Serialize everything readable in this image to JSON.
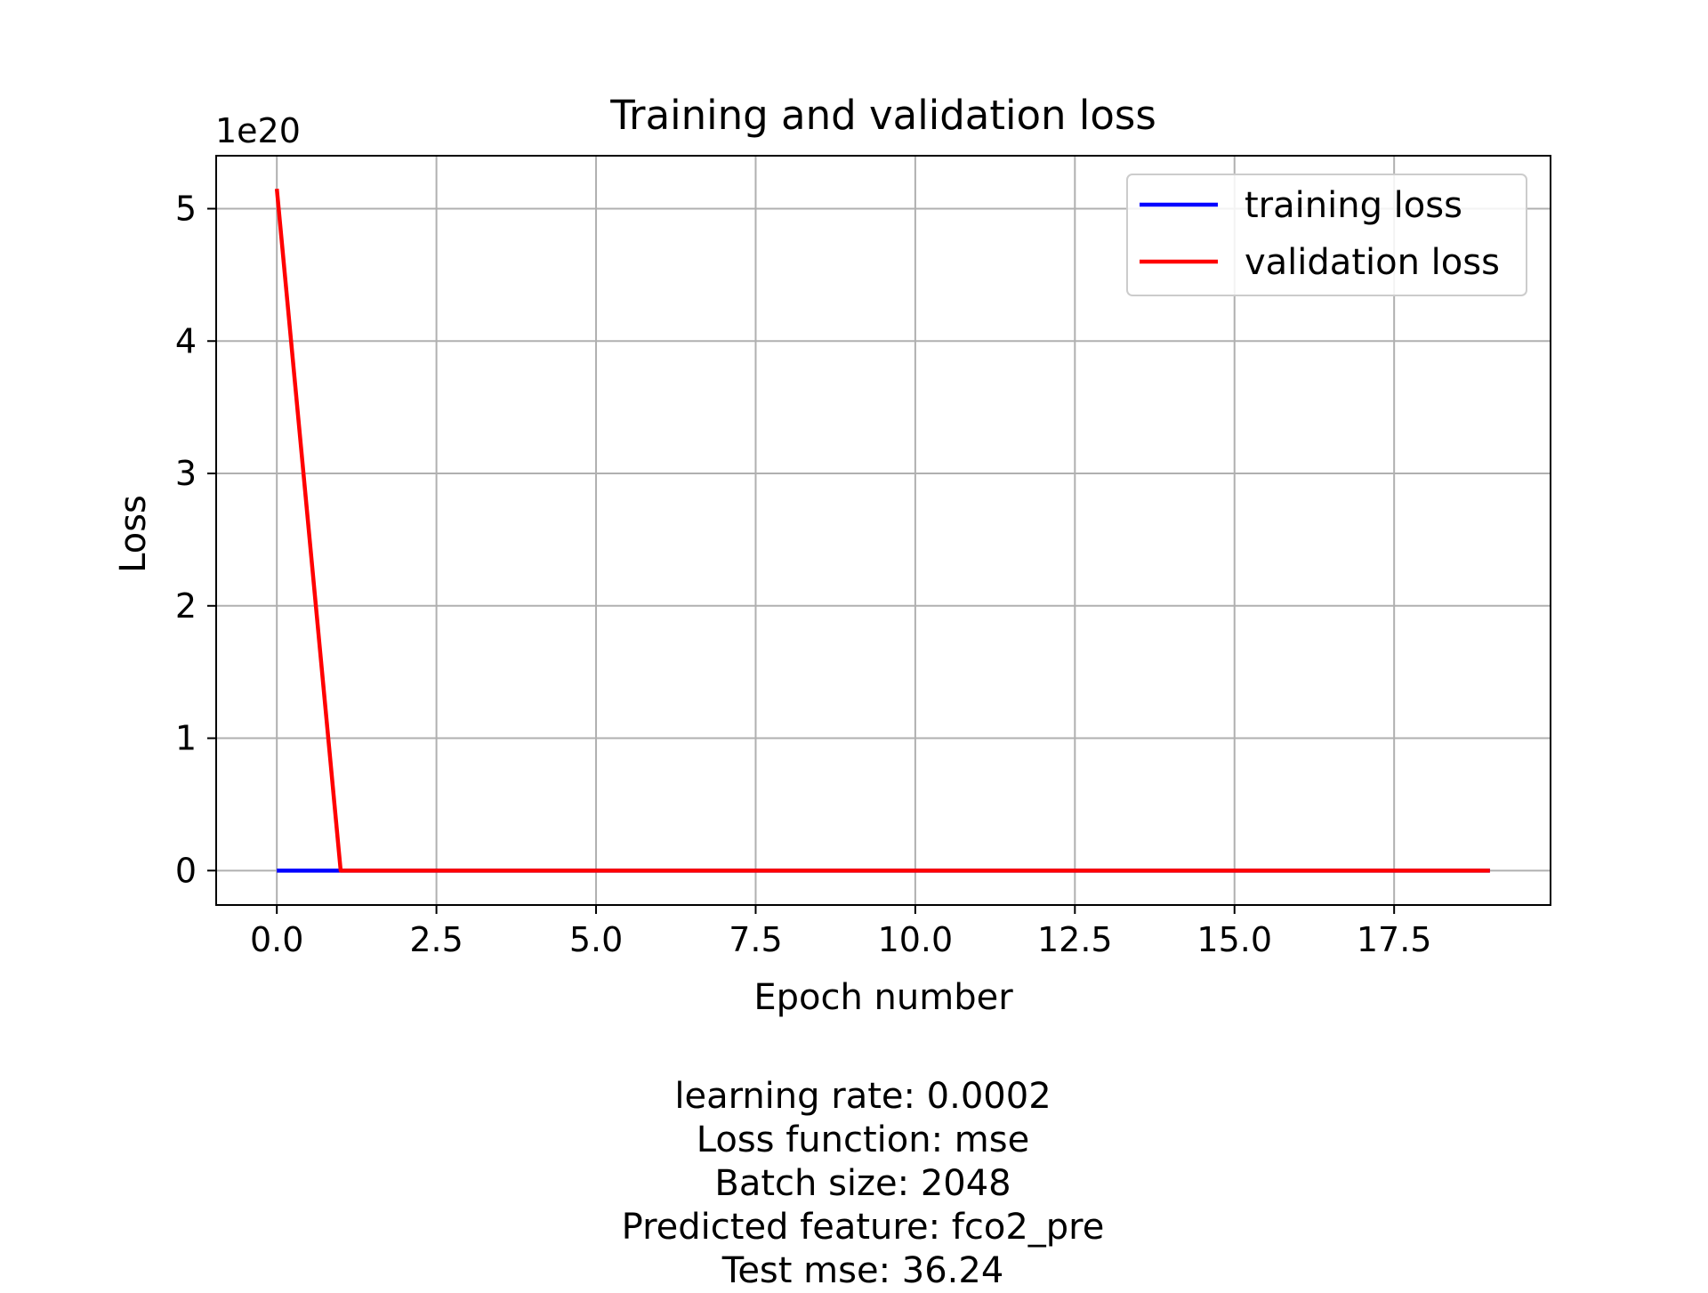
{
  "chart_data": {
    "type": "line",
    "title": "Training and validation loss",
    "xlabel": "Epoch number",
    "ylabel": "Loss",
    "y_offset_label": "1e20",
    "y_scale_exponent": 20,
    "xlim": [
      -0.95,
      19.95
    ],
    "ylim": [
      -0.26,
      5.4
    ],
    "xticks": [
      0.0,
      2.5,
      5.0,
      7.5,
      10.0,
      12.5,
      15.0,
      17.5
    ],
    "xtick_labels": [
      "0.0",
      "2.5",
      "5.0",
      "7.5",
      "10.0",
      "12.5",
      "15.0",
      "17.5"
    ],
    "yticks": [
      0,
      1,
      2,
      3,
      4,
      5
    ],
    "ytick_labels": [
      "0",
      "1",
      "2",
      "3",
      "4",
      "5"
    ],
    "grid": true,
    "legend_position": "top-right",
    "x": [
      0,
      1,
      2,
      3,
      4,
      5,
      6,
      7,
      8,
      9,
      10,
      11,
      12,
      13,
      14,
      15,
      16,
      17,
      18,
      19
    ],
    "series": [
      {
        "name": "training loss",
        "color": "#0000ff",
        "values": [
          0.0,
          0.0,
          0.0,
          0.0,
          0.0,
          0.0,
          0.0,
          0.0,
          0.0,
          0.0,
          0.0,
          0.0,
          0.0,
          0.0,
          0.0,
          0.0,
          0.0,
          0.0,
          0.0,
          0.0
        ]
      },
      {
        "name": "validation loss",
        "color": "#ff0000",
        "values": [
          5.15,
          0.0,
          0.0,
          0.0,
          0.0,
          0.0,
          0.0,
          0.0,
          0.0,
          0.0,
          0.0,
          0.0,
          0.0,
          0.0,
          0.0,
          0.0,
          0.0,
          0.0,
          0.0,
          0.0
        ]
      }
    ]
  },
  "caption": {
    "lines": [
      "learning rate: 0.0002",
      "Loss function: mse",
      "Batch size: 2048",
      "Predicted feature: fco2_pre",
      "Test mse: 36.24"
    ]
  }
}
